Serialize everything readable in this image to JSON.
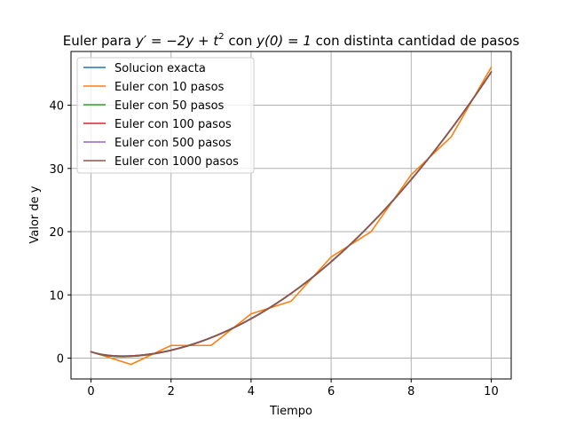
{
  "chart_data": {
    "type": "line",
    "title_parts": {
      "prefix": "Euler para ",
      "equation": "y′ = −2y + t",
      "exponent": "2",
      "middle": " con ",
      "initial": "y(0) = 1",
      "suffix": " con distinta cantidad de pasos"
    },
    "xlabel": "Tiempo",
    "ylabel": "Valor de y",
    "xlim": [
      -0.5,
      10.5
    ],
    "ylim": [
      -3.3,
      48.5
    ],
    "xticks": [
      0,
      2,
      4,
      6,
      8,
      10
    ],
    "yticks": [
      0,
      10,
      20,
      30,
      40
    ],
    "grid": true,
    "legend_position": "top-left",
    "series": [
      {
        "name": "Solucion exacta",
        "color": "#1f77b4",
        "method": "exact",
        "steps": 0
      },
      {
        "name": "Euler con 10 pasos",
        "color": "#ff7f0e",
        "method": "euler",
        "steps": 10,
        "x": [
          0,
          1,
          2,
          3,
          4,
          5,
          6,
          7,
          8,
          9,
          10
        ],
        "y": [
          1,
          -1,
          2,
          2,
          7,
          9,
          16,
          20,
          29,
          35,
          46
        ]
      },
      {
        "name": "Euler con 50 pasos",
        "color": "#2ca02c",
        "method": "euler",
        "steps": 50
      },
      {
        "name": "Euler con 100 pasos",
        "color": "#d62728",
        "method": "euler",
        "steps": 100
      },
      {
        "name": "Euler con 500 pasos",
        "color": "#9467bd",
        "method": "euler",
        "steps": 500
      },
      {
        "name": "Euler con 1000 pasos",
        "color": "#8c564b",
        "method": "euler",
        "steps": 1000
      }
    ]
  }
}
